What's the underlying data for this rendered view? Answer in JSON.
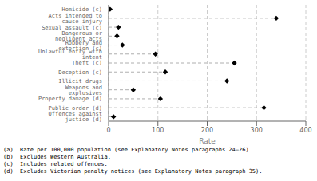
{
  "chart_data": {
    "type": "dot",
    "orientation": "horizontal",
    "categories": [
      "Homicide (c)",
      "Acts intended to cause injury",
      "Sexual assault (c)",
      "Dangerous or negligent acts",
      "Robbery and extortion (c)",
      "Unlawful entry with intent",
      "Theft (c)",
      "Deception (c)",
      "Illicit drugs",
      "Weapons and explosives",
      "Property damage (d)",
      "Public order (d)",
      "Offences against justice (d)"
    ],
    "values": [
      3,
      340,
      20,
      17,
      28,
      95,
      255,
      115,
      240,
      50,
      105,
      315,
      10
    ],
    "xlabel": "Rate",
    "xlim": [
      0,
      400
    ],
    "xticks": [
      0,
      100,
      200,
      300,
      400
    ],
    "color": "#000000",
    "marker": "diamond",
    "line_style": "dashed",
    "grid": true,
    "annotations": [
      "(a)  Rate per 100,000 population (see Explanatory Notes paragraphs 24–26).",
      "(b)  Excludes Western Australia.",
      "(c)  Includes related offences.",
      "(d)  Excludes Victorian penalty notices (see Explanatory Notes paragraph 35)."
    ]
  }
}
